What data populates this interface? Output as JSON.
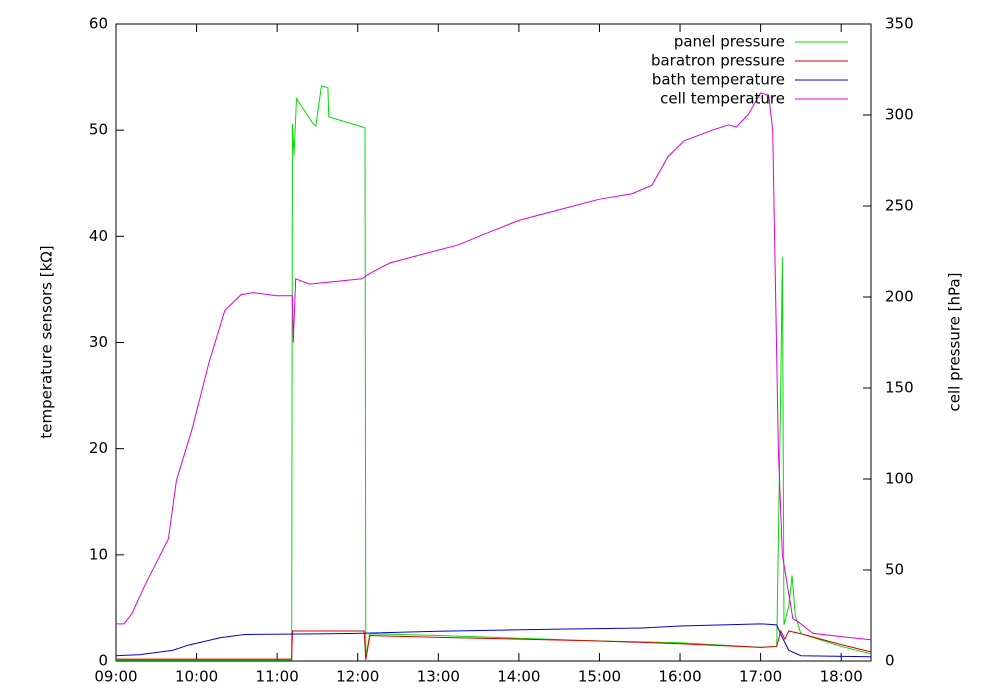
{
  "chart_data": {
    "type": "line",
    "y_label": "temperature sensors [kΩ]",
    "y2_label": "cell pressure [hPa]",
    "legend": "top-right",
    "xlim": [
      9,
      18.37
    ],
    "xticks": [
      {
        "value": 9,
        "label": "09:00"
      },
      {
        "value": 10,
        "label": "10:00"
      },
      {
        "value": 11,
        "label": "11:00"
      },
      {
        "value": 12,
        "label": "12:00"
      },
      {
        "value": 13,
        "label": "13:00"
      },
      {
        "value": 14,
        "label": "14:00"
      },
      {
        "value": 15,
        "label": "15:00"
      },
      {
        "value": 16,
        "label": "16:00"
      },
      {
        "value": 17,
        "label": "17:00"
      },
      {
        "value": 18,
        "label": "18:00"
      }
    ],
    "ylim": [
      0,
      60
    ],
    "yticks": [
      0,
      10,
      20,
      30,
      40,
      50,
      60
    ],
    "y2lim": [
      0,
      350
    ],
    "y2ticks": [
      0,
      50,
      100,
      150,
      200,
      250,
      300,
      350
    ],
    "series": [
      {
        "name": "panel pressure",
        "color": "#00dd00",
        "axis": "y2",
        "x": [
          9.0,
          11.18,
          11.19,
          11.21,
          11.24,
          11.45,
          11.48,
          11.55,
          11.63,
          11.64,
          12.09,
          12.1,
          12.15,
          13.0,
          15.0,
          16.0,
          17.0,
          17.2,
          17.25,
          17.27,
          17.29,
          17.35,
          17.39,
          17.43,
          17.5,
          18.0,
          18.37
        ],
        "values": [
          0.5,
          0.5,
          295,
          278,
          309,
          295,
          294,
          316,
          315,
          299,
          293,
          2,
          15,
          14,
          11,
          10,
          7.5,
          8,
          150,
          222,
          20,
          30,
          47,
          25,
          15,
          8,
          4
        ]
      },
      {
        "name": "baratron pressure",
        "color": "#dd0000",
        "axis": "y2",
        "x": [
          9.0,
          11.18,
          11.19,
          12.08,
          12.1,
          12.15,
          13.0,
          15.0,
          16.0,
          17.0,
          17.2,
          17.25,
          17.3,
          17.35,
          17.5,
          18.0,
          18.37
        ],
        "values": [
          1,
          1,
          16.5,
          16.5,
          0.5,
          14,
          13,
          11,
          9.5,
          7.5,
          8,
          16.5,
          12,
          16.5,
          15,
          9,
          5
        ]
      },
      {
        "name": "bath temperature",
        "color": "#0000dd",
        "axis": "y",
        "x": [
          9.0,
          9.3,
          9.7,
          9.9,
          10.3,
          10.6,
          11.5,
          12.0,
          13.0,
          14.5,
          15.5,
          16.0,
          17.0,
          17.2,
          17.25,
          17.35,
          17.5,
          18.37
        ],
        "values": [
          0.5,
          0.6,
          1,
          1.5,
          2.2,
          2.5,
          2.55,
          2.6,
          2.8,
          3,
          3.1,
          3.3,
          3.5,
          3.4,
          2.5,
          1,
          0.5,
          0.4
        ]
      },
      {
        "name": "cell temperature",
        "color": "#dd00dd",
        "axis": "y",
        "x": [
          9.0,
          9.1,
          9.2,
          9.35,
          9.55,
          9.65,
          9.75,
          9.95,
          10.15,
          10.35,
          10.55,
          10.7,
          11.0,
          11.19,
          11.2,
          11.23,
          11.4,
          11.8,
          12.05,
          12.15,
          12.4,
          12.9,
          13.25,
          13.6,
          14.0,
          14.5,
          15.0,
          15.4,
          15.65,
          15.85,
          16.05,
          16.4,
          16.6,
          16.7,
          16.85,
          17.0,
          17.1,
          17.15,
          17.22,
          17.27,
          17.4,
          17.5,
          17.65,
          18.0,
          18.37
        ],
        "values": [
          3.5,
          3.5,
          4.5,
          7,
          10,
          11.5,
          17,
          22,
          28,
          33,
          34.5,
          34.7,
          34.4,
          34.4,
          30,
          36,
          35.5,
          35.8,
          36,
          36.5,
          37.5,
          38.5,
          39.2,
          40.3,
          41.5,
          42.5,
          43.5,
          44,
          44.8,
          47.5,
          49,
          50,
          50.5,
          50.3,
          51.5,
          53.5,
          53.3,
          50,
          20,
          10,
          4,
          3.5,
          2.6,
          2.3,
          2
        ]
      }
    ]
  }
}
